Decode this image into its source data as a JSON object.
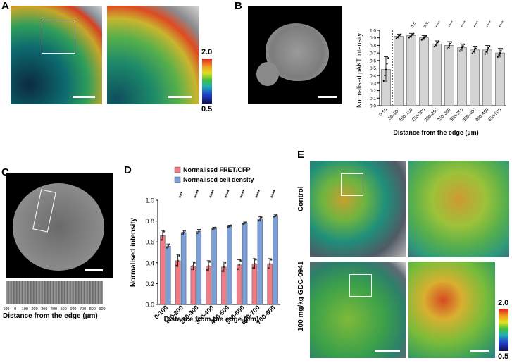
{
  "panels": {
    "A": {
      "letter": "A",
      "colorbar_max": "2.0",
      "colorbar_min": "0.5"
    },
    "B": {
      "letter": "B"
    },
    "C": {
      "letter": "C",
      "xlabel": "Distance from the edge (µm)",
      "strip_ticks": [
        "-100",
        "0",
        "100",
        "200",
        "300",
        "400",
        "500",
        "600",
        "700",
        "800",
        "900"
      ]
    },
    "D": {
      "letter": "D"
    },
    "E": {
      "letter": "E",
      "row_labels": [
        "Control",
        "100 mg/kg GDC-0941"
      ],
      "colorbar_max": "2.0",
      "colorbar_min": "0.5"
    }
  },
  "chart_data": [
    {
      "id": "B",
      "type": "bar",
      "categories": [
        "0-50",
        "50-100",
        "100-150",
        "150-200",
        "200-250",
        "250-300",
        "300-350",
        "350-400",
        "400-450",
        "450-500"
      ],
      "values": [
        0.48,
        0.92,
        0.93,
        0.9,
        0.82,
        0.8,
        0.77,
        0.74,
        0.74,
        0.7
      ],
      "errors": [
        0.17,
        0.03,
        0.03,
        0.03,
        0.04,
        0.05,
        0.05,
        0.05,
        0.06,
        0.06
      ],
      "significance": [
        "",
        "",
        "n.s.",
        "n.s.",
        "****",
        "****",
        "****",
        "****",
        "****",
        "****"
      ],
      "xlabel": "Distance from the edge (µm)",
      "ylabel": "Normalised pAKT intensity",
      "ylim": [
        0,
        1.0
      ],
      "yticks": [
        "0.0",
        "0.1",
        "0.2",
        "0.3",
        "0.4",
        "0.5",
        "0.6",
        "0.7",
        "0.8",
        "0.9",
        "1.0"
      ],
      "colors": {
        "bar": "#d4d4d4",
        "edge": "#555555"
      }
    },
    {
      "id": "D",
      "type": "bar",
      "categories": [
        "0-100",
        "100-200",
        "200-300",
        "300-400",
        "400-500",
        "500-600",
        "600-700",
        "700-800"
      ],
      "series": [
        {
          "name": "Normalised FRET/CFP",
          "values": [
            0.66,
            0.42,
            0.37,
            0.37,
            0.36,
            0.38,
            0.39,
            0.39
          ],
          "errors": [
            0.05,
            0.06,
            0.04,
            0.05,
            0.05,
            0.05,
            0.05,
            0.05
          ],
          "color": "#f07a86"
        },
        {
          "name": "Normalised cell density",
          "values": [
            0.56,
            0.69,
            0.7,
            0.73,
            0.75,
            0.78,
            0.82,
            0.85
          ],
          "errors": [
            0.02,
            0.02,
            0.02,
            0.01,
            0.01,
            0.01,
            0.02,
            0.01
          ],
          "color": "#7b9fd9"
        }
      ],
      "significance": [
        "",
        "***",
        "****",
        "****",
        "****",
        "****",
        "****",
        "****"
      ],
      "xlabel": "Distance from the edge (µm)",
      "ylabel": "Normalised intensity",
      "ylim": [
        0,
        1.0
      ],
      "yticks": [
        "0.0",
        "0.2",
        "0.4",
        "0.6",
        "0.8",
        "1.0"
      ]
    }
  ]
}
